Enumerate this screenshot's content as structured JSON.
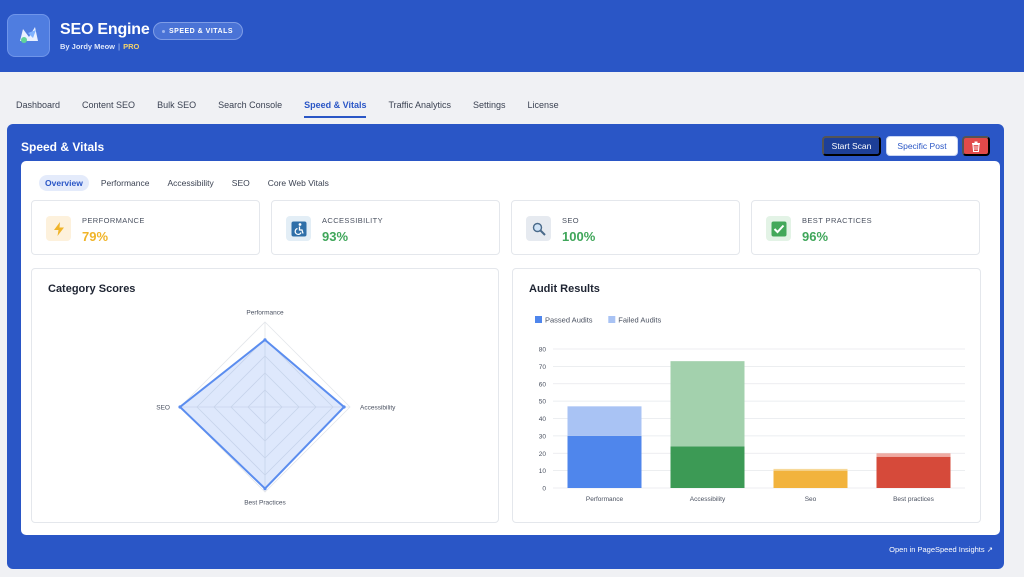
{
  "app": {
    "title": "SEO Engine",
    "byline": "By Jordy Meow",
    "edition": "PRO",
    "breadcrumb": "SPEED & VITALS"
  },
  "nav": {
    "tabs": [
      "Dashboard",
      "Content SEO",
      "Bulk SEO",
      "Search Console",
      "Speed & Vitals",
      "Traffic Analytics",
      "Settings",
      "License"
    ],
    "active": "Speed & Vitals"
  },
  "panel": {
    "title": "Speed & Vitals",
    "start_scan": "Start Scan",
    "specific_post": "Specific Post",
    "footer_link": "Open in PageSpeed Insights ↗"
  },
  "subtabs": {
    "items": [
      "Overview",
      "Performance",
      "Accessibility",
      "SEO",
      "Core Web Vitals"
    ],
    "active": "Overview"
  },
  "cards": [
    {
      "label": "PERFORMANCE",
      "value": "79%",
      "icon": "lightning-icon",
      "color": "#f0b429",
      "bg": "#fdf1dc"
    },
    {
      "label": "ACCESSIBILITY",
      "value": "93%",
      "icon": "accessibility-icon",
      "color": "#3fa65a",
      "bg": "#e3eef6"
    },
    {
      "label": "SEO",
      "value": "100%",
      "icon": "magnifier-icon",
      "color": "#3fa65a",
      "bg": "#e6eaf0"
    },
    {
      "label": "BEST PRACTICES",
      "value": "96%",
      "icon": "checkmark-icon",
      "color": "#3fa65a",
      "bg": "#e3f3e6"
    }
  ],
  "category_scores": {
    "title": "Category Scores",
    "chart_data": {
      "type": "radar",
      "axes": [
        "Performance",
        "Accessibility",
        "Best Practices",
        "SEO"
      ],
      "values": [
        79,
        93,
        96,
        100
      ],
      "range": [
        0,
        100
      ],
      "color": "#5b8def"
    }
  },
  "audit_results": {
    "title": "Audit Results",
    "chart_data": {
      "type": "bar",
      "stacked": true,
      "categories": [
        "Performance",
        "Accessibility",
        "Seo",
        "Best practices"
      ],
      "series": [
        {
          "name": "Passed Audits",
          "values": [
            30,
            24,
            10,
            18
          ]
        },
        {
          "name": "Failed Audits",
          "values": [
            17,
            49,
            1,
            2
          ]
        }
      ],
      "ylim": [
        0,
        80
      ],
      "yticks": [
        0,
        10,
        20,
        30,
        40,
        50,
        60,
        70,
        80
      ],
      "legend": "top-left",
      "colors": {
        "passed": [
          "#4f86ec",
          "#3c9a55",
          "#f2b33d",
          "#d64a3a"
        ],
        "failed": [
          "#a9c3f4",
          "#a3d1ad",
          "#f7d99a",
          "#efaaa2"
        ],
        "legend_passed": "#4f86ec",
        "legend_failed": "#a9c3f4"
      }
    }
  }
}
